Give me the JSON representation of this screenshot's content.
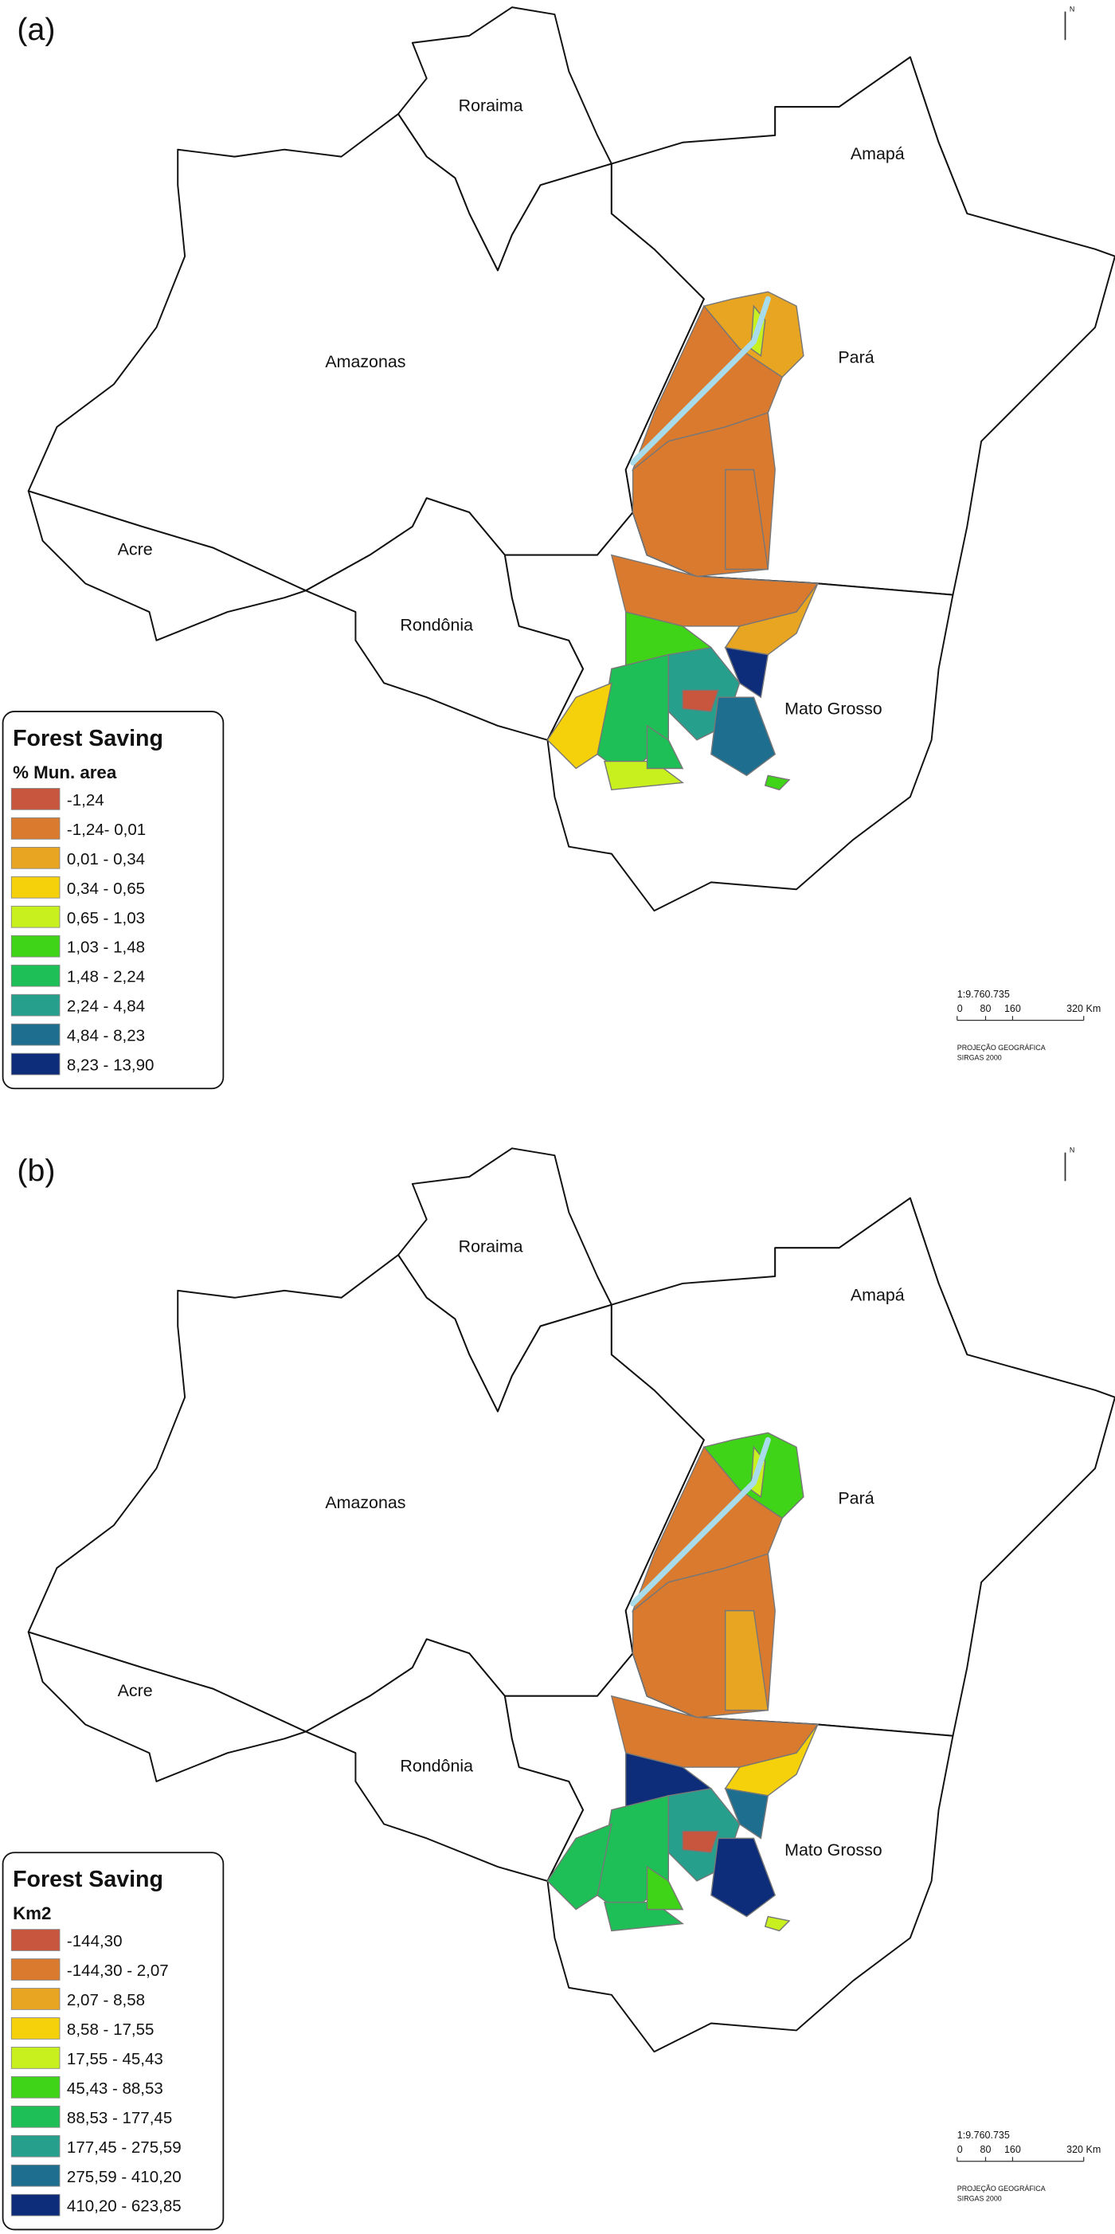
{
  "panels": [
    {
      "label": "(a)",
      "states": [
        "Roraima",
        "Amapá",
        "Amazonas",
        "Pará",
        "Acre",
        "Rondônia",
        "Mato Grosso"
      ],
      "legend": {
        "title": "Forest Saving",
        "subtitle": "% Mun. area",
        "items": [
          {
            "label": "-1,24",
            "color": "#c8553d"
          },
          {
            "label": "-1,24- 0,01",
            "color": "#d97a2f"
          },
          {
            "label": "0,01 - 0,34",
            "color": "#e8a521"
          },
          {
            "label": "0,34 - 0,65",
            "color": "#f5d10c"
          },
          {
            "label": "0,65 - 1,03",
            "color": "#c8f01e"
          },
          {
            "label": "1,03 - 1,48",
            "color": "#3fd418"
          },
          {
            "label": "1,48 - 2,24",
            "color": "#1fbf57"
          },
          {
            "label": "2,24 - 4,84",
            "color": "#26a08c"
          },
          {
            "label": "4,84 - 8,23",
            "color": "#1e6f8f"
          },
          {
            "label": "8,23 - 13,90",
            "color": "#0d2c7a"
          }
        ]
      },
      "scale": {
        "ratio": "1:9.760.735",
        "ticks": [
          "0",
          "80",
          "160",
          "320 Km"
        ],
        "projection": "PROJEÇÃO GEOGRÁFICA",
        "datum": "SIRGAS 2000"
      },
      "north": "N"
    },
    {
      "label": "(b)",
      "states": [
        "Roraima",
        "Amapá",
        "Amazonas",
        "Pará",
        "Acre",
        "Rondônia",
        "Mato Grosso"
      ],
      "legend": {
        "title": "Forest Saving",
        "subtitle": "Km2",
        "items": [
          {
            "label": "-144,30",
            "color": "#c8553d"
          },
          {
            "label": "-144,30 - 2,07",
            "color": "#d97a2f"
          },
          {
            "label": "2,07 - 8,58",
            "color": "#e8a521"
          },
          {
            "label": "8,58 - 17,55",
            "color": "#f5d10c"
          },
          {
            "label": "17,55 - 45,43",
            "color": "#c8f01e"
          },
          {
            "label": "45,43 - 88,53",
            "color": "#3fd418"
          },
          {
            "label": "88,53 - 177,45",
            "color": "#1fbf57"
          },
          {
            "label": "177,45 - 275,59",
            "color": "#26a08c"
          },
          {
            "label": "275,59 - 410,20",
            "color": "#1e6f8f"
          },
          {
            "label": "410,20 - 623,85",
            "color": "#0d2c7a"
          }
        ]
      },
      "scale": {
        "ratio": "1:9.760.735",
        "ticks": [
          "0",
          "80",
          "160",
          "320 Km"
        ],
        "projection": "PROJEÇÃO GEOGRÁFICA",
        "datum": "SIRGAS 2000"
      },
      "north": "N"
    }
  ]
}
